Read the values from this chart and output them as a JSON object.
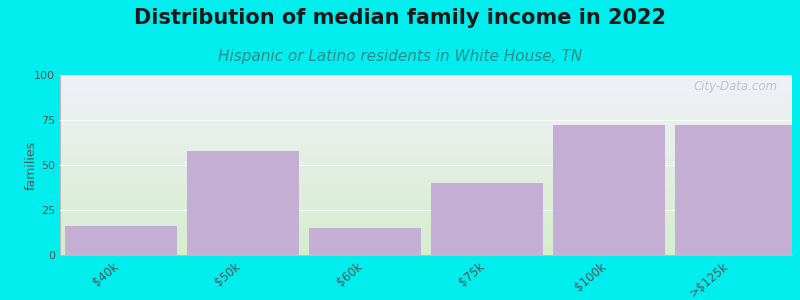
{
  "title": "Distribution of median family income in 2022",
  "subtitle": "Hispanic or Latino residents in White House, TN",
  "categories": [
    "$40k",
    "$50k",
    "$60k",
    "$75k",
    "$100k",
    ">$125k"
  ],
  "values": [
    16,
    58,
    15,
    40,
    72,
    72
  ],
  "bar_color": "#C4AED4",
  "ylabel": "families",
  "ylim": [
    0,
    100
  ],
  "yticks": [
    0,
    25,
    50,
    75,
    100
  ],
  "background_outer": "#00EEEE",
  "gradient_top": "#F0F0F8",
  "gradient_bottom": "#D4EDCC",
  "title_fontsize": 15,
  "subtitle_fontsize": 11,
  "title_color": "#1a1a1a",
  "subtitle_color": "#2E8B8B",
  "watermark": "City-Data.com",
  "bar_width": 0.92
}
